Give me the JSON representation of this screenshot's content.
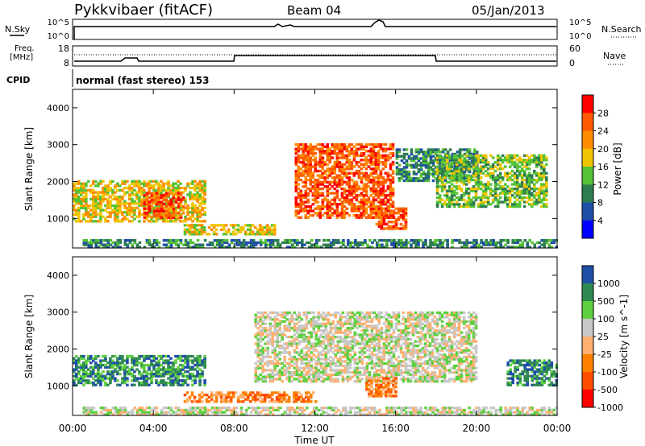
{
  "header": {
    "station": "Pykkvibaer (fitACF)",
    "beam": "Beam 04",
    "date": "05/Jan/2013"
  },
  "noise_panel": {
    "left_label": "N.Sky",
    "left_ticks": [
      "10^5",
      "10^0"
    ],
    "right_ticks": [
      "10^5",
      "10^0"
    ],
    "right_label": "N.Search"
  },
  "freq_panel": {
    "left_label_line1": "Freq.",
    "left_label_line2": "[MHz]",
    "left_ticks": [
      "18",
      "8"
    ],
    "right_ticks": [
      "60",
      "0"
    ],
    "right_label": "Nave"
  },
  "cpid": {
    "label": "CPID",
    "value": "normal (fast stereo) 153"
  },
  "colors": {
    "power": [
      "#0000ff",
      "#1f4fa8",
      "#2e7d4f",
      "#55c236",
      "#f0c400",
      "#ff8c00",
      "#ff5a00",
      "#ff0000"
    ],
    "velocity": [
      "#ff0000",
      "#ff4d00",
      "#ff8000",
      "#ffb070",
      "#c8c8c8",
      "#5fd040",
      "#2f8a52",
      "#1f4fa8"
    ]
  },
  "chart_data": [
    {
      "type": "heatmap",
      "name": "power",
      "xlabel": "Time UT",
      "ylabel": "Slant Range [km]",
      "y_ticks": [
        "1000",
        "2000",
        "3000",
        "4000"
      ],
      "ylim": [
        200,
        4500
      ],
      "xlim": [
        "00:00",
        "24:00"
      ],
      "colorbar": {
        "label": "Power [dB]",
        "ticks": [
          "4",
          "8",
          "12",
          "16",
          "20",
          "24",
          "28"
        ],
        "range": [
          0,
          32
        ]
      },
      "regions": [
        {
          "t0": 0.0,
          "t1": 6.5,
          "r0": 900,
          "r1": 2000,
          "level": 0.5
        },
        {
          "t0": 3.5,
          "t1": 5.5,
          "r0": 1000,
          "r1": 1700,
          "level": 0.85
        },
        {
          "t0": 5.5,
          "t1": 10.0,
          "r0": 550,
          "r1": 850,
          "level": 0.55
        },
        {
          "t0": 11.0,
          "t1": 15.8,
          "r0": 1000,
          "r1": 3000,
          "level": 0.85
        },
        {
          "t0": 15.0,
          "t1": 16.5,
          "r0": 700,
          "r1": 1300,
          "level": 0.8
        },
        {
          "t0": 16.0,
          "t1": 20.0,
          "r0": 2000,
          "r1": 2900,
          "level": 0.3
        },
        {
          "t0": 18.0,
          "t1": 23.5,
          "r0": 1300,
          "r1": 2700,
          "level": 0.45
        },
        {
          "t0": 0.5,
          "t1": 24.0,
          "r0": 200,
          "r1": 400,
          "level": 0.35
        }
      ]
    },
    {
      "type": "heatmap",
      "name": "velocity",
      "xlabel": "Time UT",
      "ylabel": "Slant Range [km]",
      "x_ticks": [
        "00:00",
        "04:00",
        "08:00",
        "12:00",
        "16:00",
        "20:00",
        "00:00"
      ],
      "y_ticks": [
        "1000",
        "2000",
        "3000",
        "4000"
      ],
      "ylim": [
        200,
        4500
      ],
      "xlim": [
        "00:00",
        "24:00"
      ],
      "colorbar": {
        "label": "Velocity [m s^-1]",
        "ticks": [
          "1000",
          "500",
          "100",
          "25",
          "-25",
          "-100",
          "-500",
          "-1000"
        ]
      },
      "regions": [
        {
          "t0": 0.0,
          "t1": 6.5,
          "r0": 1000,
          "r1": 1800,
          "level": -0.6
        },
        {
          "t0": 5.5,
          "t1": 12.0,
          "r0": 550,
          "r1": 850,
          "level": 0.5
        },
        {
          "t0": 9.0,
          "t1": 20.0,
          "r0": 1100,
          "r1": 3000,
          "level": 0.0
        },
        {
          "t0": 14.5,
          "t1": 16.0,
          "r0": 700,
          "r1": 1200,
          "level": 0.5
        },
        {
          "t0": 21.5,
          "t1": 24.0,
          "r0": 1000,
          "r1": 1700,
          "level": -0.6
        },
        {
          "t0": 0.5,
          "t1": 24.0,
          "r0": 200,
          "r1": 400,
          "level": -0.2
        }
      ]
    }
  ]
}
